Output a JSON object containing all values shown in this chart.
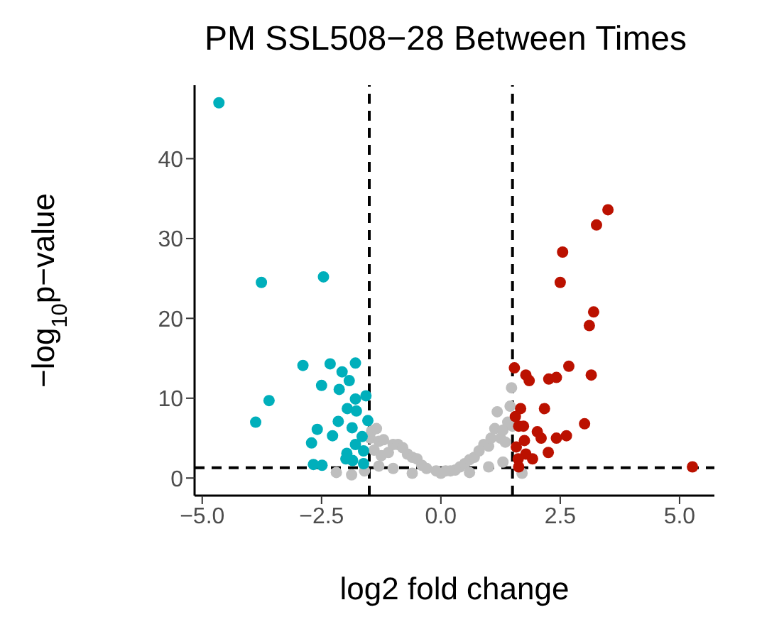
{
  "chart_data": {
    "type": "scatter",
    "title": "PM SSL508−28 Between Times",
    "xlabel": "log2 fold change",
    "ylabel": "−log$_{10}$p−value",
    "xlim": [
      -5.16,
      5.73
    ],
    "ylim": [
      -2.2,
      49.2
    ],
    "xticks": [
      {
        "value": -5,
        "label": "−5.0"
      },
      {
        "value": -2.5,
        "label": "−2.5"
      },
      {
        "value": 0,
        "label": "0.0"
      },
      {
        "value": 2.5,
        "label": "2.5"
      },
      {
        "value": 5,
        "label": "5.0"
      }
    ],
    "yticks": [
      0,
      10,
      20,
      30,
      40
    ],
    "grid": false,
    "legend": false,
    "marker": "circle",
    "ref_lines": [
      {
        "axis": "x",
        "value": -1.5,
        "color": "#000000",
        "line_style": "dashed"
      },
      {
        "axis": "x",
        "value": 1.5,
        "color": "#000000",
        "line_style": "dashed"
      },
      {
        "axis": "y",
        "value": 1.3,
        "color": "#000000",
        "line_style": "dashed"
      }
    ],
    "series": [
      {
        "color": "#bebebe",
        "x": [
          -2.19,
          -1.87,
          -1.6,
          -1.48,
          -1.45,
          -1.4,
          -1.35,
          -1.3,
          -1.25,
          -1.2,
          -1.1,
          -1.0,
          -0.9,
          -0.8,
          -0.7,
          -0.6,
          -0.5,
          -0.4,
          -0.3,
          -0.1,
          0.0,
          0.1,
          0.2,
          0.3,
          0.4,
          0.5,
          0.6,
          0.7,
          0.8,
          0.9,
          1.0,
          1.05,
          1.13,
          1.18,
          1.25,
          1.3,
          1.35,
          1.4,
          1.45,
          1.48,
          1.5,
          1.7,
          -1.3,
          -1.0,
          -0.6,
          0.6,
          1.0,
          1.3
        ],
        "values": [
          0.7,
          0.4,
          0.9,
          5.0,
          5.9,
          3.5,
          6.2,
          4.6,
          2.8,
          4.8,
          3.2,
          4.2,
          4.2,
          3.8,
          3.0,
          2.6,
          2.4,
          1.6,
          1.2,
          0.9,
          0.6,
          0.9,
          0.9,
          1.0,
          1.4,
          1.8,
          2.3,
          2.6,
          3.4,
          4.2,
          4.0,
          5.0,
          6.2,
          8.3,
          5.0,
          6.0,
          4.5,
          7.0,
          9.0,
          11.3,
          6.5,
          0.6,
          1.5,
          1.2,
          0.6,
          0.7,
          1.4,
          2.0
        ]
      },
      {
        "color": "#00afbb",
        "x": [
          -4.65,
          -3.76,
          -2.46,
          -2.89,
          -2.32,
          -1.79,
          -2.07,
          -1.92,
          -2.5,
          -2.13,
          -3.6,
          -1.79,
          -1.57,
          -1.96,
          -1.77,
          -3.88,
          -2.15,
          -1.53,
          -2.59,
          -1.86,
          -2.71,
          -2.27,
          -1.65,
          -1.79,
          -1.97,
          -1.62,
          -1.85,
          -1.62,
          -2.67,
          -2.49,
          -1.99
        ],
        "values": [
          47.0,
          24.5,
          25.2,
          14.1,
          14.3,
          14.4,
          13.3,
          12.2,
          11.6,
          11.1,
          9.7,
          9.9,
          10.3,
          8.7,
          8.4,
          7.0,
          7.1,
          7.2,
          6.1,
          6.3,
          4.4,
          5.3,
          5.2,
          4.2,
          3.1,
          3.4,
          2.2,
          1.8,
          1.7,
          1.6,
          2.4
        ]
      },
      {
        "color": "#bb1100",
        "x": [
          3.5,
          3.26,
          2.55,
          2.5,
          3.2,
          3.11,
          1.54,
          2.68,
          1.78,
          1.85,
          2.26,
          2.42,
          3.15,
          1.67,
          2.17,
          1.56,
          1.63,
          3.01,
          1.73,
          2.02,
          2.1,
          2.42,
          2.63,
          1.75,
          1.58,
          2.25,
          1.78,
          1.92,
          1.62,
          1.63,
          5.27
        ],
        "values": [
          33.6,
          31.7,
          28.3,
          24.5,
          20.8,
          19.1,
          13.8,
          14.0,
          12.9,
          12.2,
          12.4,
          12.6,
          12.9,
          8.7,
          8.7,
          7.7,
          6.5,
          6.8,
          6.5,
          5.8,
          5.0,
          5.0,
          5.3,
          4.7,
          3.9,
          3.2,
          3.0,
          2.4,
          2.4,
          1.4,
          1.4
        ]
      }
    ]
  }
}
